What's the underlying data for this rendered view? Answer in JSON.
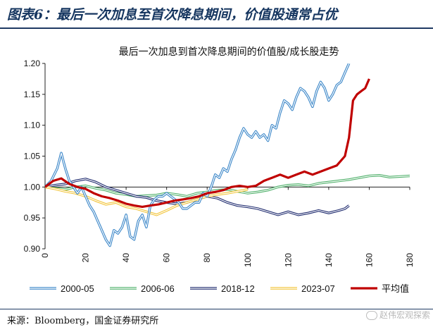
{
  "header": {
    "title": "图表6：最后一次加息至首次降息期间，价值股通常占优"
  },
  "footer": {
    "source": "来源：Bloomberg，国金证券研究所",
    "watermark": "赵伟宏观探索"
  },
  "colors": {
    "header_text": "#15355f",
    "rule": "#1f3a63"
  },
  "chart_data": {
    "type": "line",
    "title": "最后一次加息到首次降息期间的价值股/成长股走势",
    "xlim": [
      0,
      180
    ],
    "ylim": [
      0.9,
      1.2
    ],
    "xticks": [
      "0",
      "20",
      "40",
      "60",
      "80",
      "100",
      "120",
      "140",
      "160",
      "180"
    ],
    "yticks": [
      "0.90",
      "0.95",
      "1.00",
      "1.05",
      "1.10",
      "1.15",
      "1.20"
    ],
    "reference_line": 1.0,
    "legend_position": "bottom",
    "series": [
      {
        "name": "2000-05",
        "color": "#3a86c8",
        "style": "double",
        "points": [
          [
            0,
            1.0
          ],
          [
            3,
            1.01
          ],
          [
            6,
            1.03
          ],
          [
            8,
            1.055
          ],
          [
            10,
            1.03
          ],
          [
            12,
            1.01
          ],
          [
            14,
            1.0
          ],
          [
            16,
            0.99
          ],
          [
            18,
            1.0
          ],
          [
            20,
            0.985
          ],
          [
            22,
            0.97
          ],
          [
            24,
            0.96
          ],
          [
            26,
            0.945
          ],
          [
            28,
            0.93
          ],
          [
            30,
            0.915
          ],
          [
            32,
            0.905
          ],
          [
            34,
            0.93
          ],
          [
            36,
            0.925
          ],
          [
            38,
            0.935
          ],
          [
            40,
            0.955
          ],
          [
            42,
            0.92
          ],
          [
            44,
            0.915
          ],
          [
            46,
            0.945
          ],
          [
            48,
            0.955
          ],
          [
            50,
            0.935
          ],
          [
            52,
            0.97
          ],
          [
            54,
            0.98
          ],
          [
            56,
            0.985
          ],
          [
            58,
            0.985
          ],
          [
            60,
            0.99
          ],
          [
            62,
            0.985
          ],
          [
            64,
            0.98
          ],
          [
            66,
            0.975
          ],
          [
            68,
            0.965
          ],
          [
            70,
            0.965
          ],
          [
            72,
            0.97
          ],
          [
            74,
            0.975
          ],
          [
            76,
            0.975
          ],
          [
            78,
            0.99
          ],
          [
            80,
            0.985
          ],
          [
            82,
            1.0
          ],
          [
            84,
            1.02
          ],
          [
            86,
            1.015
          ],
          [
            88,
            1.03
          ],
          [
            90,
            1.025
          ],
          [
            92,
            1.045
          ],
          [
            94,
            1.06
          ],
          [
            96,
            1.08
          ],
          [
            98,
            1.095
          ],
          [
            100,
            1.085
          ],
          [
            102,
            1.08
          ],
          [
            104,
            1.09
          ],
          [
            106,
            1.08
          ],
          [
            108,
            1.085
          ],
          [
            110,
            1.075
          ],
          [
            112,
            1.1
          ],
          [
            114,
            1.095
          ],
          [
            116,
            1.12
          ],
          [
            118,
            1.14
          ],
          [
            120,
            1.135
          ],
          [
            122,
            1.125
          ],
          [
            124,
            1.145
          ],
          [
            126,
            1.16
          ],
          [
            128,
            1.155
          ],
          [
            130,
            1.145
          ],
          [
            132,
            1.13
          ],
          [
            134,
            1.155
          ],
          [
            136,
            1.17
          ],
          [
            138,
            1.16
          ],
          [
            140,
            1.14
          ],
          [
            142,
            1.15
          ],
          [
            144,
            1.165
          ],
          [
            146,
            1.17
          ],
          [
            148,
            1.185
          ],
          [
            150,
            1.2
          ]
        ]
      },
      {
        "name": "2006-06",
        "color": "#4fb06a",
        "style": "double",
        "points": [
          [
            0,
            1.0
          ],
          [
            5,
            0.998
          ],
          [
            10,
            0.996
          ],
          [
            15,
            1.0
          ],
          [
            20,
            1.002
          ],
          [
            25,
            0.998
          ],
          [
            30,
            0.995
          ],
          [
            35,
            0.99
          ],
          [
            40,
            0.988
          ],
          [
            45,
            0.985
          ],
          [
            50,
            0.986
          ],
          [
            55,
            0.987
          ],
          [
            60,
            0.99
          ],
          [
            65,
            0.988
          ],
          [
            70,
            0.985
          ],
          [
            75,
            0.99
          ],
          [
            80,
            0.992
          ],
          [
            85,
            0.995
          ],
          [
            90,
            0.996
          ],
          [
            95,
            0.993
          ],
          [
            100,
            0.99
          ],
          [
            105,
            0.992
          ],
          [
            110,
            0.995
          ],
          [
            115,
            1.0
          ],
          [
            120,
            1.003
          ],
          [
            125,
            1.004
          ],
          [
            130,
            1.002
          ],
          [
            135,
            1.006
          ],
          [
            140,
            1.008
          ],
          [
            145,
            1.01
          ],
          [
            150,
            1.012
          ],
          [
            155,
            1.015
          ],
          [
            160,
            1.018
          ],
          [
            165,
            1.019
          ],
          [
            170,
            1.016
          ],
          [
            175,
            1.017
          ],
          [
            180,
            1.018
          ]
        ]
      },
      {
        "name": "2018-12",
        "color": "#1e2a6e",
        "style": "double",
        "points": [
          [
            0,
            1.0
          ],
          [
            5,
            1.003
          ],
          [
            10,
            1.005
          ],
          [
            15,
            1.01
          ],
          [
            20,
            1.013
          ],
          [
            25,
            1.008
          ],
          [
            30,
            1.0
          ],
          [
            35,
            0.995
          ],
          [
            40,
            0.99
          ],
          [
            45,
            0.985
          ],
          [
            50,
            0.983
          ],
          [
            55,
            0.978
          ],
          [
            60,
            0.975
          ],
          [
            65,
            0.973
          ],
          [
            70,
            0.975
          ],
          [
            75,
            0.98
          ],
          [
            80,
            0.985
          ],
          [
            85,
            0.982
          ],
          [
            90,
            0.975
          ],
          [
            95,
            0.97
          ],
          [
            100,
            0.968
          ],
          [
            105,
            0.965
          ],
          [
            110,
            0.96
          ],
          [
            115,
            0.955
          ],
          [
            120,
            0.96
          ],
          [
            125,
            0.955
          ],
          [
            130,
            0.958
          ],
          [
            135,
            0.962
          ],
          [
            140,
            0.958
          ],
          [
            145,
            0.962
          ],
          [
            148,
            0.965
          ],
          [
            150,
            0.97
          ]
        ]
      },
      {
        "name": "2023-07",
        "color": "#f2c438",
        "style": "double",
        "points": [
          [
            0,
            1.0
          ],
          [
            5,
            0.997
          ],
          [
            10,
            0.993
          ],
          [
            15,
            0.99
          ],
          [
            20,
            0.985
          ],
          [
            25,
            0.978
          ],
          [
            30,
            0.972
          ],
          [
            35,
            0.975
          ],
          [
            40,
            0.968
          ],
          [
            45,
            0.965
          ],
          [
            50,
            0.96
          ],
          [
            55,
            0.955
          ],
          [
            60,
            0.962
          ],
          [
            65,
            0.97
          ],
          [
            70,
            0.975
          ],
          [
            75,
            0.98
          ],
          [
            80,
            0.985
          ],
          [
            85,
            0.988
          ],
          [
            90,
            0.99
          ],
          [
            95,
            0.993
          ],
          [
            100,
            0.996
          ]
        ]
      },
      {
        "name": "平均值",
        "color": "#c00000",
        "style": "thick",
        "points": [
          [
            0,
            1.0
          ],
          [
            4,
            1.01
          ],
          [
            8,
            1.014
          ],
          [
            12,
            1.005
          ],
          [
            16,
            1.0
          ],
          [
            20,
            0.997
          ],
          [
            24,
            0.99
          ],
          [
            28,
            0.985
          ],
          [
            32,
            0.982
          ],
          [
            36,
            0.978
          ],
          [
            40,
            0.973
          ],
          [
            44,
            0.97
          ],
          [
            48,
            0.968
          ],
          [
            52,
            0.97
          ],
          [
            56,
            0.972
          ],
          [
            60,
            0.975
          ],
          [
            64,
            0.978
          ],
          [
            68,
            0.98
          ],
          [
            72,
            0.982
          ],
          [
            76,
            0.985
          ],
          [
            80,
            0.99
          ],
          [
            84,
            0.992
          ],
          [
            88,
            0.995
          ],
          [
            92,
            1.0
          ],
          [
            96,
            1.002
          ],
          [
            100,
            1.0
          ],
          [
            104,
            1.002
          ],
          [
            108,
            1.01
          ],
          [
            112,
            1.015
          ],
          [
            116,
            1.02
          ],
          [
            120,
            1.015
          ],
          [
            124,
            1.02
          ],
          [
            128,
            1.025
          ],
          [
            132,
            1.02
          ],
          [
            136,
            1.025
          ],
          [
            140,
            1.03
          ],
          [
            144,
            1.035
          ],
          [
            148,
            1.05
          ],
          [
            150,
            1.08
          ],
          [
            152,
            1.14
          ],
          [
            154,
            1.15
          ],
          [
            156,
            1.155
          ],
          [
            158,
            1.16
          ],
          [
            160,
            1.175
          ]
        ]
      }
    ]
  }
}
